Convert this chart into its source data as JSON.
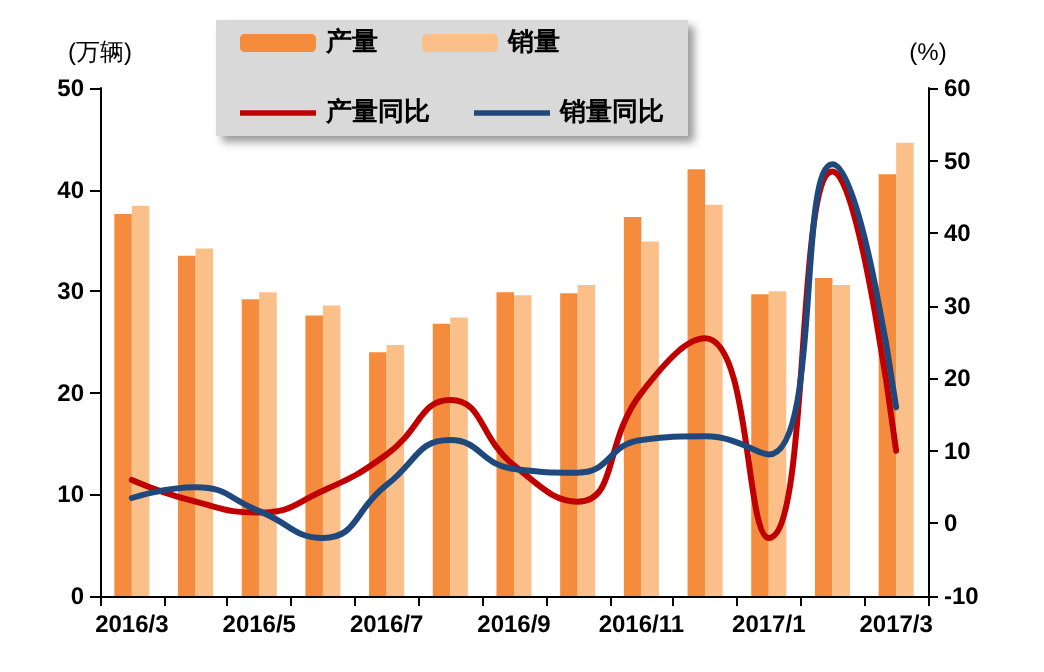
{
  "chart_data": {
    "type": "bar",
    "ylabel": "(万辆)",
    "y2label": "(%)",
    "categories": [
      "2016/3",
      null,
      "2016/5",
      null,
      "2016/7",
      null,
      "2016/9",
      null,
      "2016/11",
      null,
      "2017/1",
      null,
      "2017/3"
    ],
    "series": [
      {
        "name": "产量",
        "color": "#f58b3c",
        "values": [
          37.6,
          33.5,
          29.2,
          27.6,
          24.0,
          26.8,
          29.9,
          29.8,
          37.3,
          42.0,
          29.7,
          31.3,
          41.5
        ]
      },
      {
        "name": "销量",
        "color": "#fbbf8a",
        "values": [
          38.4,
          34.2,
          29.9,
          28.6,
          24.7,
          27.4,
          29.6,
          30.6,
          34.9,
          38.5,
          30.0,
          30.6,
          44.6
        ]
      },
      {
        "name": "产量同比",
        "type": "line",
        "axis": "y2",
        "color": "#c00000",
        "values": [
          6,
          3,
          1.5,
          4.5,
          9.5,
          17,
          8,
          3,
          18,
          25.5,
          -2,
          48.5,
          10
        ]
      },
      {
        "name": "销量同比",
        "type": "line",
        "axis": "y2",
        "color": "#1f497d",
        "values": [
          3.5,
          5,
          1.7,
          -2,
          5.3,
          11.5,
          7.5,
          7,
          11.5,
          12,
          9.5,
          49.5,
          16
        ]
      }
    ],
    "ylim": [
      0,
      50
    ],
    "yticks": [
      0,
      10,
      20,
      30,
      40,
      50
    ],
    "y2lim": [
      -10,
      60
    ],
    "y2ticks": [
      -10,
      0,
      10,
      20,
      30,
      40,
      50,
      60
    ],
    "grid": false,
    "legend": "top",
    "marker": "none",
    "line_style": "solid"
  }
}
